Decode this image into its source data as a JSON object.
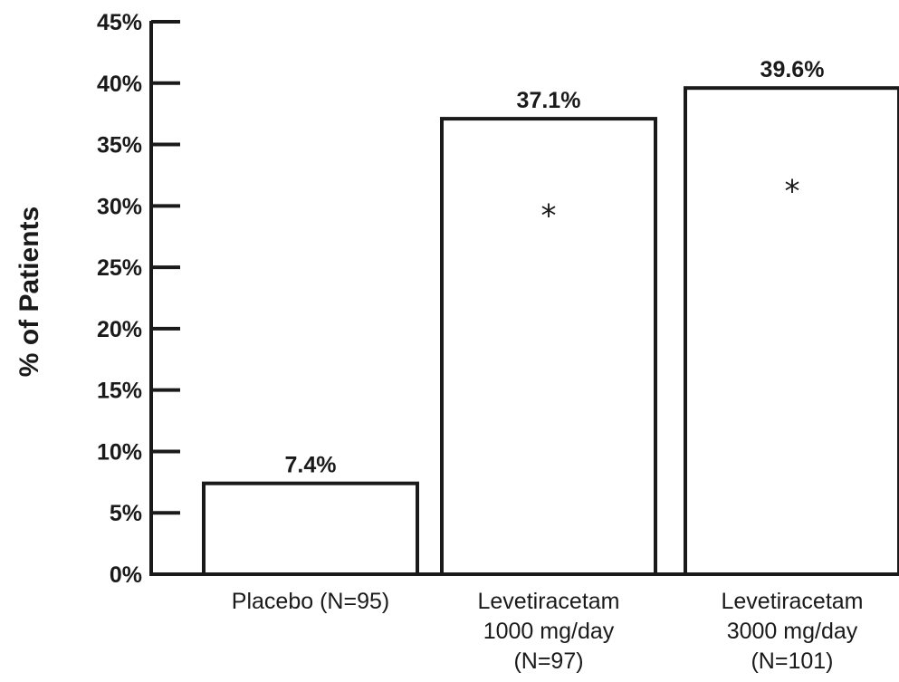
{
  "chart_data": {
    "type": "bar",
    "ylabel": "% of Patients",
    "xlabel": "",
    "ylim": [
      0,
      45
    ],
    "yticks": [
      0,
      5,
      10,
      15,
      20,
      25,
      30,
      35,
      40,
      45
    ],
    "ytick_labels": [
      "0%",
      "5%",
      "10%",
      "15%",
      "20%",
      "25%",
      "30%",
      "35%",
      "40%",
      "45%"
    ],
    "categories": [
      [
        "Placebo (N=95)"
      ],
      [
        "Levetiracetam",
        "1000 mg/day",
        "(N=97)"
      ],
      [
        "Levetiracetam",
        "3000 mg/day",
        "(N=101)"
      ]
    ],
    "values": [
      7.4,
      37.1,
      39.6
    ],
    "value_labels": [
      "7.4%",
      "37.1%",
      "39.6%"
    ],
    "annotations": [
      "",
      "*",
      "*"
    ],
    "grid": false,
    "bar_fill": "#ffffff",
    "bar_stroke": "#1a1a1a"
  }
}
